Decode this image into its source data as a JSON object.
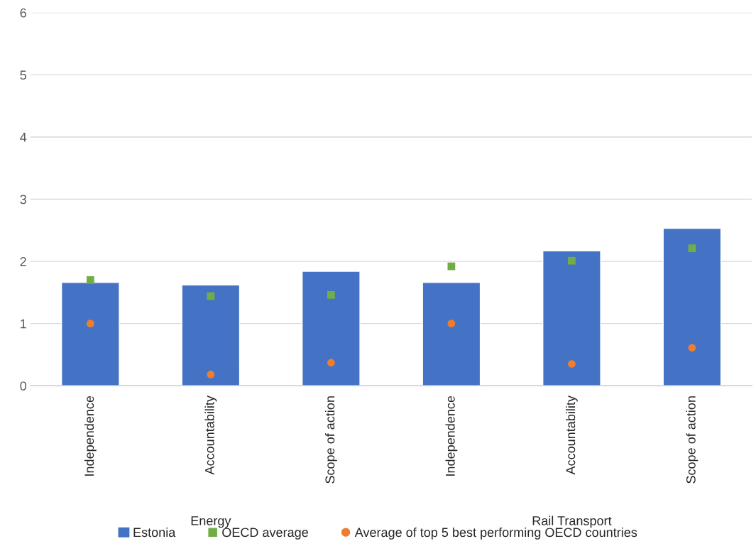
{
  "chart_data": {
    "type": "bar",
    "categories": [
      "Independence",
      "Accountability",
      "Scope of action",
      "Independence",
      "Accountability",
      "Scope of action"
    ],
    "series": [
      {
        "name": "Estonia",
        "color": "#4472c4",
        "values": [
          1.66,
          1.62,
          1.84,
          1.66,
          2.17,
          2.53
        ]
      },
      {
        "name": "OECD average",
        "type": "scatter",
        "marker": "square",
        "color": "#70ad47",
        "values": [
          1.7,
          1.44,
          1.46,
          1.92,
          2.01,
          2.21
        ]
      },
      {
        "name": "Average of top 5 best performing OECD countries",
        "type": "scatter",
        "marker": "circle",
        "color": "#ed7d31",
        "values": [
          1.0,
          0.18,
          0.37,
          1.0,
          0.35,
          0.61
        ]
      }
    ],
    "annotations": [
      "Energy",
      "Rail Transport"
    ],
    "ylim": [
      0,
      6
    ],
    "yticks": [
      0,
      1,
      2,
      3,
      4,
      5,
      6
    ],
    "grid": "y",
    "legend": "bottom"
  }
}
